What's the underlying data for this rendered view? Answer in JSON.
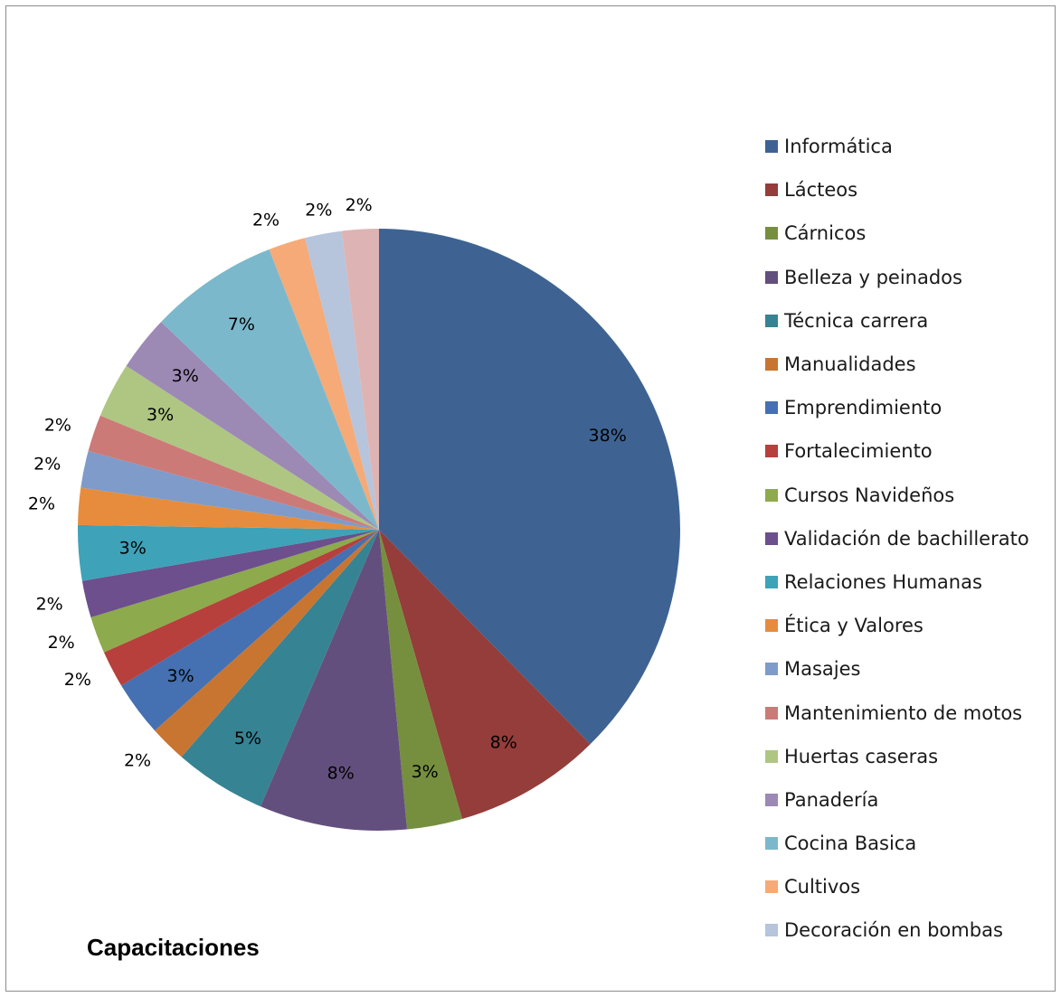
{
  "chart_data": {
    "type": "pie",
    "title": "Capacitaciones",
    "legend_position": "right",
    "slices": [
      {
        "name": "Informática",
        "value": 38,
        "label": "38%",
        "color": "#3E6393"
      },
      {
        "name": "Lácteos",
        "value": 8,
        "label": "8%",
        "color": "#943D3A"
      },
      {
        "name": "Cárnicos",
        "value": 3,
        "label": "3%",
        "color": "#768F3E"
      },
      {
        "name": "Belleza y peinados",
        "value": 8,
        "label": "8%",
        "color": "#634F7D"
      },
      {
        "name": "Técnica carrera",
        "value": 5,
        "label": "5%",
        "color": "#368393"
      },
      {
        "name": "Manualidades",
        "value": 2,
        "label": "2%",
        "color": "#C87532"
      },
      {
        "name": "Emprendimiento",
        "value": 3,
        "label": "3%",
        "color": "#4570B1"
      },
      {
        "name": "Fortalecimiento",
        "value": 2,
        "label": "2%",
        "color": "#B7403C"
      },
      {
        "name": "Cursos Navideños",
        "value": 2,
        "label": "2%",
        "color": "#8DAA4C"
      },
      {
        "name": "Validación de bachillerato",
        "value": 2,
        "label": "2%",
        "color": "#6C4F8C"
      },
      {
        "name": "Relaciones Humanas",
        "value": 3,
        "label": "3%",
        "color": "#3EA2B8"
      },
      {
        "name": "Ética y Valores",
        "value": 2,
        "label": "2%",
        "color": "#E68C3C"
      },
      {
        "name": "Masajes",
        "value": 2,
        "label": "2%",
        "color": "#7E9BC9"
      },
      {
        "name": "Mantenimiento de motos",
        "value": 2,
        "label": "2%",
        "color": "#CC7A77"
      },
      {
        "name": "Huertas caseras",
        "value": 3,
        "label": "3%",
        "color": "#AEC682"
      },
      {
        "name": "Panadería",
        "value": 3,
        "label": "3%",
        "color": "#9C89B4"
      },
      {
        "name": "Cocina Basica",
        "value": 7,
        "label": "7%",
        "color": "#7CB8CC"
      },
      {
        "name": "Cultivos",
        "value": 2,
        "label": "2%",
        "color": "#F5AA77"
      },
      {
        "name": "Decoración en bombas",
        "value": 2,
        "label": "2%",
        "color": "#B6C4DC"
      },
      {
        "name": "",
        "value": 2,
        "label": "2%",
        "color": "#DDB4B3"
      }
    ]
  }
}
